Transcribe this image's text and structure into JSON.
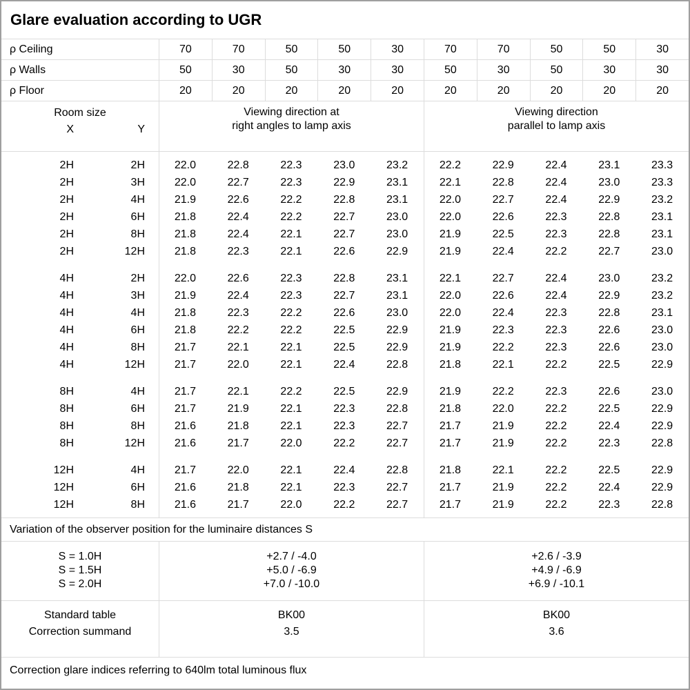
{
  "title": "Glare evaluation according to UGR",
  "header": {
    "rows": [
      {
        "label": "ρ Ceiling",
        "values": [
          "70",
          "70",
          "50",
          "50",
          "30",
          "70",
          "70",
          "50",
          "50",
          "30"
        ]
      },
      {
        "label": "ρ Walls",
        "values": [
          "50",
          "30",
          "50",
          "30",
          "30",
          "50",
          "30",
          "50",
          "30",
          "30"
        ]
      },
      {
        "label": "ρ Floor",
        "values": [
          "20",
          "20",
          "20",
          "20",
          "20",
          "20",
          "20",
          "20",
          "20",
          "20"
        ]
      }
    ],
    "room_size_label": "Room size",
    "x_label": "X",
    "y_label": "Y",
    "group_left": [
      "Viewing direction at",
      "right angles to lamp axis"
    ],
    "group_right": [
      "Viewing direction",
      "parallel to lamp axis"
    ]
  },
  "ugr_blocks": [
    {
      "rows": [
        {
          "x": "2H",
          "y": "2H",
          "values": [
            "22.0",
            "22.8",
            "22.3",
            "23.0",
            "23.2",
            "22.2",
            "22.9",
            "22.4",
            "23.1",
            "23.3"
          ]
        },
        {
          "x": "2H",
          "y": "3H",
          "values": [
            "22.0",
            "22.7",
            "22.3",
            "22.9",
            "23.1",
            "22.1",
            "22.8",
            "22.4",
            "23.0",
            "23.3"
          ]
        },
        {
          "x": "2H",
          "y": "4H",
          "values": [
            "21.9",
            "22.6",
            "22.2",
            "22.8",
            "23.1",
            "22.0",
            "22.7",
            "22.4",
            "22.9",
            "23.2"
          ]
        },
        {
          "x": "2H",
          "y": "6H",
          "values": [
            "21.8",
            "22.4",
            "22.2",
            "22.7",
            "23.0",
            "22.0",
            "22.6",
            "22.3",
            "22.8",
            "23.1"
          ]
        },
        {
          "x": "2H",
          "y": "8H",
          "values": [
            "21.8",
            "22.4",
            "22.1",
            "22.7",
            "23.0",
            "21.9",
            "22.5",
            "22.3",
            "22.8",
            "23.1"
          ]
        },
        {
          "x": "2H",
          "y": "12H",
          "values": [
            "21.8",
            "22.3",
            "22.1",
            "22.6",
            "22.9",
            "21.9",
            "22.4",
            "22.2",
            "22.7",
            "23.0"
          ]
        }
      ]
    },
    {
      "rows": [
        {
          "x": "4H",
          "y": "2H",
          "values": [
            "22.0",
            "22.6",
            "22.3",
            "22.8",
            "23.1",
            "22.1",
            "22.7",
            "22.4",
            "23.0",
            "23.2"
          ]
        },
        {
          "x": "4H",
          "y": "3H",
          "values": [
            "21.9",
            "22.4",
            "22.3",
            "22.7",
            "23.1",
            "22.0",
            "22.6",
            "22.4",
            "22.9",
            "23.2"
          ]
        },
        {
          "x": "4H",
          "y": "4H",
          "values": [
            "21.8",
            "22.3",
            "22.2",
            "22.6",
            "23.0",
            "22.0",
            "22.4",
            "22.3",
            "22.8",
            "23.1"
          ]
        },
        {
          "x": "4H",
          "y": "6H",
          "values": [
            "21.8",
            "22.2",
            "22.2",
            "22.5",
            "22.9",
            "21.9",
            "22.3",
            "22.3",
            "22.6",
            "23.0"
          ]
        },
        {
          "x": "4H",
          "y": "8H",
          "values": [
            "21.7",
            "22.1",
            "22.1",
            "22.5",
            "22.9",
            "21.9",
            "22.2",
            "22.3",
            "22.6",
            "23.0"
          ]
        },
        {
          "x": "4H",
          "y": "12H",
          "values": [
            "21.7",
            "22.0",
            "22.1",
            "22.4",
            "22.8",
            "21.8",
            "22.1",
            "22.2",
            "22.5",
            "22.9"
          ]
        }
      ]
    },
    {
      "rows": [
        {
          "x": "8H",
          "y": "4H",
          "values": [
            "21.7",
            "22.1",
            "22.2",
            "22.5",
            "22.9",
            "21.9",
            "22.2",
            "22.3",
            "22.6",
            "23.0"
          ]
        },
        {
          "x": "8H",
          "y": "6H",
          "values": [
            "21.7",
            "21.9",
            "22.1",
            "22.3",
            "22.8",
            "21.8",
            "22.0",
            "22.2",
            "22.5",
            "22.9"
          ]
        },
        {
          "x": "8H",
          "y": "8H",
          "values": [
            "21.6",
            "21.8",
            "22.1",
            "22.3",
            "22.7",
            "21.7",
            "21.9",
            "22.2",
            "22.4",
            "22.9"
          ]
        },
        {
          "x": "8H",
          "y": "12H",
          "values": [
            "21.6",
            "21.7",
            "22.0",
            "22.2",
            "22.7",
            "21.7",
            "21.9",
            "22.2",
            "22.3",
            "22.8"
          ]
        }
      ]
    },
    {
      "rows": [
        {
          "x": "12H",
          "y": "4H",
          "values": [
            "21.7",
            "22.0",
            "22.1",
            "22.4",
            "22.8",
            "21.8",
            "22.1",
            "22.2",
            "22.5",
            "22.9"
          ]
        },
        {
          "x": "12H",
          "y": "6H",
          "values": [
            "21.6",
            "21.8",
            "22.1",
            "22.3",
            "22.7",
            "21.7",
            "21.9",
            "22.2",
            "22.4",
            "22.9"
          ]
        },
        {
          "x": "12H",
          "y": "8H",
          "values": [
            "21.6",
            "21.7",
            "22.0",
            "22.2",
            "22.7",
            "21.7",
            "21.9",
            "22.2",
            "22.3",
            "22.8"
          ]
        }
      ]
    }
  ],
  "variation_note": "Variation of the observer position for the luminaire distances S",
  "s_section": {
    "rows": [
      {
        "label": "S = 1.0H",
        "left": "+2.7 / -4.0",
        "right": "+2.6 / -3.9"
      },
      {
        "label": "S = 1.5H",
        "left": "+5.0 / -6.9",
        "right": "+4.9 / -6.9"
      },
      {
        "label": "S = 2.0H",
        "left": "+7.0 / -10.0",
        "right": "+6.9 / -10.1"
      }
    ]
  },
  "summary": {
    "rows": [
      {
        "label": "Standard table",
        "left": "BK00",
        "right": "BK00"
      },
      {
        "label": "Correction summand",
        "left": "3.5",
        "right": "3.6"
      }
    ]
  },
  "footnote": "Correction glare indices referring to 640lm total luminous flux",
  "colors": {
    "background": "#ffffff",
    "text": "#000000",
    "grid_line": "#dcdcdc",
    "outer_border": "#9f9f9f"
  }
}
